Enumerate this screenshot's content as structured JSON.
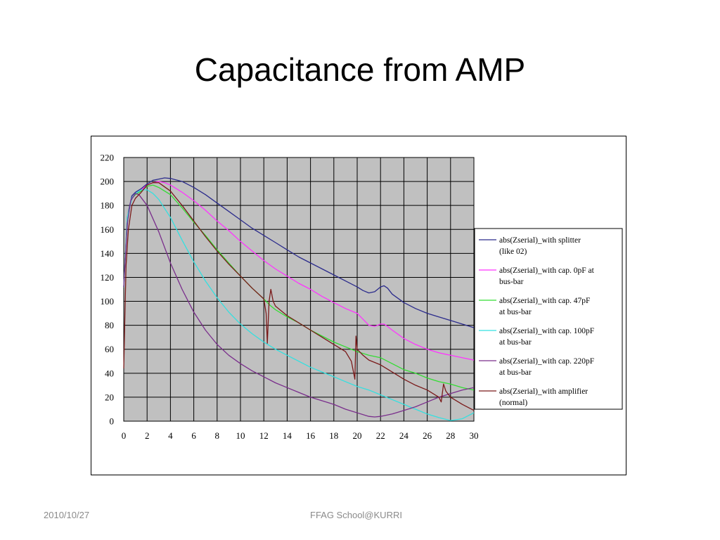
{
  "slide": {
    "title": "Capacitance from AMP",
    "footer_date": "2010/10/27",
    "footer_center": "FFAG School@KURRI"
  },
  "chart_data": {
    "type": "line",
    "title": "",
    "xlabel": "",
    "ylabel": "",
    "xlim": [
      0,
      30
    ],
    "ylim": [
      0,
      220
    ],
    "x_ticks": [
      "0",
      "2",
      "4",
      "6",
      "8",
      "10",
      "12",
      "14",
      "16",
      "18",
      "20",
      "22",
      "24",
      "26",
      "28",
      "30"
    ],
    "y_ticks": [
      "0",
      "20",
      "40",
      "60",
      "80",
      "100",
      "120",
      "140",
      "160",
      "180",
      "200",
      "220"
    ],
    "grid": true,
    "plot_background": "#c0c0c0",
    "legend_position": "right",
    "series": [
      {
        "name": "abs(Zserial)_with splitter (like 02)",
        "legend_lines": [
          "abs(Zserial)_with splitter",
          "(like 02)"
        ],
        "color": "#2b2b8c",
        "points": [
          [
            0,
            112
          ],
          [
            0.2,
            150
          ],
          [
            0.4,
            175
          ],
          [
            0.7,
            188
          ],
          [
            1,
            191
          ],
          [
            1.5,
            194
          ],
          [
            2,
            198
          ],
          [
            2.5,
            201
          ],
          [
            3,
            202
          ],
          [
            3.5,
            203
          ],
          [
            4,
            202.5
          ],
          [
            5,
            200
          ],
          [
            6,
            195
          ],
          [
            7,
            189
          ],
          [
            8,
            182
          ],
          [
            9,
            175
          ],
          [
            10,
            168
          ],
          [
            11,
            161
          ],
          [
            12,
            155
          ],
          [
            13,
            149
          ],
          [
            14,
            143
          ],
          [
            15,
            137
          ],
          [
            16,
            132
          ],
          [
            17,
            127
          ],
          [
            18,
            122
          ],
          [
            19,
            117
          ],
          [
            20,
            112
          ],
          [
            20.5,
            109
          ],
          [
            21,
            107
          ],
          [
            21.5,
            108
          ],
          [
            22,
            112
          ],
          [
            22.3,
            113
          ],
          [
            22.6,
            111
          ],
          [
            23,
            106
          ],
          [
            24,
            99
          ],
          [
            25,
            94
          ],
          [
            26,
            90
          ],
          [
            27,
            87
          ],
          [
            28,
            84
          ],
          [
            29,
            81
          ],
          [
            30,
            78
          ]
        ]
      },
      {
        "name": "abs(Zserial)_with cap. 0pF at bus-bar",
        "legend_lines": [
          "abs(Zserial)_with cap. 0pF at",
          "bus-bar"
        ],
        "color": "#ff33ff",
        "points": [
          [
            0,
            112
          ],
          [
            0.3,
            170
          ],
          [
            0.7,
            186
          ],
          [
            1,
            189
          ],
          [
            1.5,
            193
          ],
          [
            2,
            197
          ],
          [
            2.5,
            199
          ],
          [
            3,
            200
          ],
          [
            3.5,
            199
          ],
          [
            4,
            197
          ],
          [
            5,
            191
          ],
          [
            6,
            184
          ],
          [
            7,
            176
          ],
          [
            8,
            167
          ],
          [
            9,
            159
          ],
          [
            10,
            150
          ],
          [
            11,
            142
          ],
          [
            12,
            134
          ],
          [
            13,
            127
          ],
          [
            14,
            121
          ],
          [
            15,
            115
          ],
          [
            16,
            110
          ],
          [
            17,
            104
          ],
          [
            18,
            99
          ],
          [
            19,
            94
          ],
          [
            20,
            90
          ],
          [
            20.5,
            85
          ],
          [
            21,
            80
          ],
          [
            21.5,
            79
          ],
          [
            22,
            81
          ],
          [
            22.3,
            81
          ],
          [
            22.6,
            79
          ],
          [
            23,
            76
          ],
          [
            24,
            69
          ],
          [
            25,
            64
          ],
          [
            26,
            60
          ],
          [
            27,
            57
          ],
          [
            28,
            55
          ],
          [
            29,
            53
          ],
          [
            30,
            51
          ]
        ]
      },
      {
        "name": "abs(Zserial)_with cap. 47pF at bus-bar",
        "legend_lines": [
          "abs(Zserial)_with cap. 47pF",
          "at bus-bar"
        ],
        "color": "#33dd33",
        "points": [
          [
            0,
            112
          ],
          [
            0.3,
            170
          ],
          [
            0.7,
            186
          ],
          [
            1,
            189
          ],
          [
            1.5,
            192
          ],
          [
            2,
            196
          ],
          [
            2.5,
            197
          ],
          [
            3,
            195
          ],
          [
            4,
            189
          ],
          [
            5,
            178
          ],
          [
            6,
            166
          ],
          [
            7,
            155
          ],
          [
            8,
            143
          ],
          [
            9,
            132
          ],
          [
            10,
            121
          ],
          [
            11,
            111
          ],
          [
            12,
            102
          ],
          [
            12.5,
            97
          ],
          [
            13,
            93
          ],
          [
            14,
            87
          ],
          [
            15,
            82
          ],
          [
            16,
            76
          ],
          [
            17,
            71
          ],
          [
            18,
            66
          ],
          [
            19,
            62
          ],
          [
            20,
            58
          ],
          [
            21,
            55
          ],
          [
            22,
            53
          ],
          [
            23,
            48
          ],
          [
            24,
            43
          ],
          [
            25,
            40
          ],
          [
            26,
            36
          ],
          [
            27,
            33
          ],
          [
            28,
            31
          ],
          [
            29,
            28
          ],
          [
            30,
            26
          ]
        ]
      },
      {
        "name": "abs(Zserial)_with cap. 100pF at bus-bar",
        "legend_lines": [
          "abs(Zserial)_with cap. 100pF",
          "at bus-bar"
        ],
        "color": "#33e0e0",
        "points": [
          [
            0,
            112
          ],
          [
            0.3,
            170
          ],
          [
            0.7,
            186
          ],
          [
            1,
            190
          ],
          [
            1.5,
            193
          ],
          [
            2,
            193
          ],
          [
            2.5,
            190
          ],
          [
            3,
            185
          ],
          [
            4,
            170
          ],
          [
            5,
            151
          ],
          [
            6,
            133
          ],
          [
            7,
            117
          ],
          [
            8,
            103
          ],
          [
            9,
            91
          ],
          [
            10,
            81
          ],
          [
            11,
            73
          ],
          [
            12,
            66
          ],
          [
            13,
            60
          ],
          [
            14,
            55
          ],
          [
            15,
            50
          ],
          [
            16,
            45
          ],
          [
            17,
            41
          ],
          [
            18,
            37
          ],
          [
            19,
            33
          ],
          [
            20,
            29
          ],
          [
            21,
            26
          ],
          [
            22,
            22
          ],
          [
            23,
            18
          ],
          [
            24,
            14
          ],
          [
            25,
            10
          ],
          [
            26,
            6
          ],
          [
            27,
            3
          ],
          [
            28,
            0.5
          ],
          [
            29,
            2
          ],
          [
            30,
            7
          ]
        ]
      },
      {
        "name": "abs(Zserial)_with cap. 220pF at bus-bar",
        "legend_lines": [
          "abs(Zserial)_with cap. 220pF",
          "at bus-bar"
        ],
        "color": "#7a2e8c",
        "points": [
          [
            0,
            112
          ],
          [
            0.3,
            165
          ],
          [
            0.6,
            184
          ],
          [
            1,
            190
          ],
          [
            1.3,
            189
          ],
          [
            2,
            180
          ],
          [
            3,
            158
          ],
          [
            4,
            132
          ],
          [
            5,
            110
          ],
          [
            6,
            91
          ],
          [
            7,
            76
          ],
          [
            8,
            64
          ],
          [
            9,
            55
          ],
          [
            10,
            48
          ],
          [
            11,
            42
          ],
          [
            12,
            37
          ],
          [
            13,
            32
          ],
          [
            14,
            28
          ],
          [
            15,
            24
          ],
          [
            16,
            20
          ],
          [
            17,
            17
          ],
          [
            18,
            14
          ],
          [
            19,
            10
          ],
          [
            20,
            7
          ],
          [
            21,
            4
          ],
          [
            21.5,
            3.5
          ],
          [
            22,
            4
          ],
          [
            23,
            6
          ],
          [
            24,
            9
          ],
          [
            25,
            12
          ],
          [
            26,
            16
          ],
          [
            27,
            20
          ],
          [
            28,
            23
          ],
          [
            29,
            26
          ],
          [
            30,
            28
          ]
        ]
      },
      {
        "name": "abs(Zserial)_with amplifier (normal)",
        "legend_lines": [
          "abs(Zserial)_with amplifier",
          "(normal)"
        ],
        "color": "#7a1a1a",
        "points": [
          [
            0,
            44
          ],
          [
            0.1,
            90
          ],
          [
            0.2,
            130
          ],
          [
            0.4,
            160
          ],
          [
            0.7,
            180
          ],
          [
            1,
            186
          ],
          [
            1.5,
            191
          ],
          [
            2,
            197
          ],
          [
            2.5,
            199
          ],
          [
            3,
            199
          ],
          [
            4,
            192
          ],
          [
            5,
            180
          ],
          [
            6,
            167
          ],
          [
            7,
            154
          ],
          [
            8,
            142
          ],
          [
            9,
            131
          ],
          [
            10,
            121
          ],
          [
            11,
            111
          ],
          [
            12,
            102
          ],
          [
            12.2,
            90
          ],
          [
            12.3,
            65
          ],
          [
            12.45,
            100
          ],
          [
            12.6,
            110
          ],
          [
            12.8,
            100
          ],
          [
            13,
            96
          ],
          [
            14,
            88
          ],
          [
            15,
            82
          ],
          [
            16,
            76
          ],
          [
            17,
            70
          ],
          [
            18,
            64
          ],
          [
            19,
            58
          ],
          [
            19.5,
            50
          ],
          [
            19.8,
            35
          ],
          [
            19.9,
            71
          ],
          [
            20,
            60
          ],
          [
            20.5,
            55
          ],
          [
            21,
            51
          ],
          [
            22,
            47
          ],
          [
            23,
            41
          ],
          [
            24,
            35
          ],
          [
            25,
            30
          ],
          [
            26,
            26
          ],
          [
            27,
            20
          ],
          [
            27.2,
            16
          ],
          [
            27.4,
            31
          ],
          [
            27.6,
            25
          ],
          [
            28,
            20
          ],
          [
            29,
            14
          ],
          [
            30,
            9
          ]
        ]
      }
    ]
  }
}
